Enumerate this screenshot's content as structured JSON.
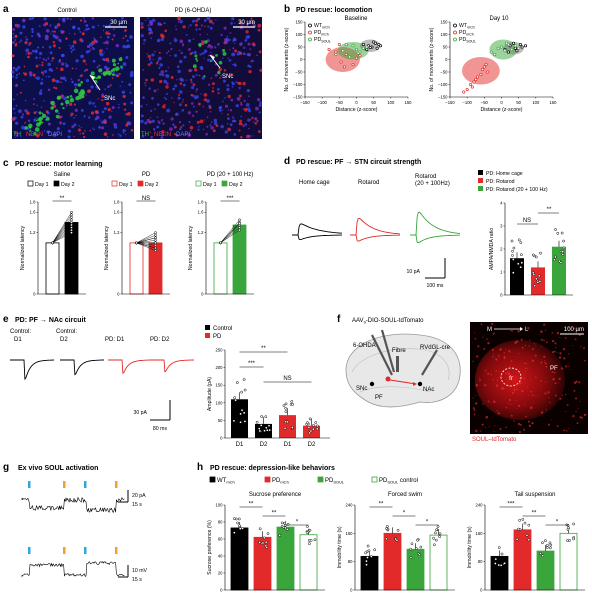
{
  "panel_letters": {
    "a": "a",
    "b": "b",
    "c": "c",
    "d": "d",
    "e": "e",
    "f": "f",
    "g": "g",
    "h": "h"
  },
  "panel_a": {
    "left_title": "Control",
    "right_title": "PD (6-OHDA)",
    "scale_left": "30 µm",
    "scale_right": "30 µm",
    "arrow_label_left": "SNc",
    "arrow_label_right": "SNc",
    "stain_th": "TH",
    "stain_neun": "NEUN",
    "stain_dapi": "DAPI",
    "colors": {
      "th": "#2ecc40",
      "neun": "#ff2d2d",
      "dapi": "#3a4bff"
    }
  },
  "panel_b": {
    "heading": "PD rescue: locomotion",
    "charts": [
      {
        "type": "scatter",
        "title": "Baseline",
        "xlabel": "Distance (z-score)",
        "ylabel": "No. of movements (z-score)",
        "xticks": [
          "−150",
          "−100",
          "−50",
          "0",
          "50",
          "100",
          "150"
        ],
        "yticks": [
          "−150",
          "−100",
          "−50",
          "0",
          "50",
          "100",
          "150"
        ],
        "xlim": [
          -150,
          150
        ],
        "ylim": [
          -150,
          150
        ],
        "legend": [
          "WT",
          "PD",
          "PD"
        ],
        "legend_sub": [
          "mCh",
          "mCh",
          "SOUL"
        ],
        "series": [
          {
            "color": "#000000",
            "x": [
              20,
              35,
              45,
              55,
              60,
              70,
              30,
              50,
              65,
              40
            ],
            "y": [
              60,
              55,
              50,
              65,
              45,
              55,
              40,
              70,
              60,
              48
            ]
          },
          {
            "color": "#e32a2a",
            "x": [
              -80,
              -60,
              -45,
              -30,
              -20,
              -10,
              0,
              10,
              -50,
              -35
            ],
            "y": [
              40,
              30,
              -10,
              20,
              10,
              -20,
              5,
              15,
              60,
              -30
            ]
          },
          {
            "color": "#3aa53a",
            "x": [
              -60,
              -40,
              -20,
              0,
              10,
              20,
              30,
              -30,
              5,
              -10
            ],
            "y": [
              20,
              35,
              10,
              40,
              30,
              45,
              50,
              60,
              25,
              55
            ]
          }
        ],
        "ellipses": [
          {
            "color": "#e32a2a",
            "cx": -40,
            "cy": 0,
            "rx": 50,
            "ry": 50
          },
          {
            "color": "#3aa53a",
            "cx": -10,
            "cy": 35,
            "rx": 45,
            "ry": 35
          },
          {
            "color": "#777777",
            "cx": 40,
            "cy": 55,
            "rx": 30,
            "ry": 25
          }
        ]
      },
      {
        "type": "scatter",
        "title": "Day 10",
        "xlabel": "Distance (z-score)",
        "ylabel": "No. of movements (z-score)",
        "xticks": [
          "−150",
          "−100",
          "−50",
          "0",
          "50",
          "100",
          "150"
        ],
        "yticks": [
          "−150",
          "−100",
          "−50",
          "0",
          "50",
          "100",
          "150"
        ],
        "xlim": [
          -150,
          150
        ],
        "ylim": [
          -150,
          150
        ],
        "legend": [
          "WT",
          "PD",
          "PD"
        ],
        "legend_sub": [
          "mCh",
          "mCh",
          "SOUL"
        ],
        "series": [
          {
            "color": "#000000",
            "x": [
              10,
              25,
              40,
              55,
              35,
              60,
              20,
              45,
              70
            ],
            "y": [
              40,
              55,
              45,
              60,
              65,
              50,
              30,
              35,
              55
            ]
          },
          {
            "color": "#e32a2a",
            "x": [
              -110,
              -100,
              -90,
              -80,
              -70,
              -60,
              -55,
              -50,
              -45,
              -40,
              -75,
              -85
            ],
            "y": [
              -130,
              -120,
              -100,
              -90,
              -70,
              -60,
              -40,
              -30,
              -20,
              -50,
              -80,
              -110
            ]
          },
          {
            "color": "#3aa53a",
            "x": [
              -30,
              -10,
              0,
              10,
              20,
              30,
              40,
              -20,
              15,
              50
            ],
            "y": [
              30,
              45,
              50,
              35,
              60,
              40,
              55,
              20,
              65,
              45
            ]
          }
        ],
        "ellipses": [
          {
            "color": "#e32a2a",
            "cx": -60,
            "cy": -45,
            "rx": 55,
            "ry": 55
          },
          {
            "color": "#3aa53a",
            "cx": 5,
            "cy": 40,
            "rx": 40,
            "ry": 40
          },
          {
            "color": "#777777",
            "cx": 35,
            "cy": 45,
            "rx": 30,
            "ry": 25
          }
        ]
      }
    ]
  },
  "panel_c": {
    "heading": "PD rescue: motor learning",
    "ylabel": "Normalized latency",
    "charts": [
      {
        "type": "bar",
        "title": "Saline",
        "legend": [
          "Day 1",
          "Day 2"
        ],
        "fill_color": "#000000",
        "categories": [
          "Day 1",
          "Day 2"
        ],
        "values": [
          1.0,
          1.4
        ],
        "sig": "**",
        "ylim": [
          0.0,
          1.8
        ],
        "yticks": [
          "0",
          "1.2",
          "1.6",
          "1.8"
        ],
        "pairs": [
          [
            1,
            1.3
          ],
          [
            1,
            1.5
          ],
          [
            1,
            1.6
          ],
          [
            1,
            1.4
          ],
          [
            1,
            1.2
          ],
          [
            1,
            1.35
          ],
          [
            1,
            1.45
          ],
          [
            1,
            1.55
          ],
          [
            1,
            1.25
          ]
        ]
      },
      {
        "type": "bar",
        "title": "PD",
        "legend": [
          "Day 1",
          "Day 2"
        ],
        "fill_color": "#e32a2a",
        "categories": [
          "Day 1",
          "Day 2"
        ],
        "values": [
          1.0,
          1.0
        ],
        "sig": "NS",
        "ylim": [
          0.0,
          1.8
        ],
        "yticks": [
          "0",
          "1.2",
          "1.6",
          "1.8"
        ],
        "pairs": [
          [
            1,
            1.1
          ],
          [
            1,
            0.9
          ],
          [
            1,
            1.0
          ],
          [
            1,
            1.2
          ],
          [
            1,
            0.95
          ],
          [
            1,
            1.05
          ],
          [
            1,
            0.85
          ],
          [
            1,
            1.15
          ],
          [
            1,
            1.0
          ],
          [
            1,
            0.9
          ],
          [
            1,
            1.1
          ]
        ]
      },
      {
        "type": "bar",
        "title": "PD (20 + 100 Hz)",
        "legend": [
          "Day 1",
          "Day 2"
        ],
        "fill_color": "#3aa53a",
        "categories": [
          "Day 1",
          "Day 2"
        ],
        "values": [
          1.0,
          1.35
        ],
        "sig": "***",
        "ylim": [
          0.0,
          1.8
        ],
        "yticks": [
          "0",
          "1.2",
          "1.6",
          "1.8"
        ],
        "pairs": [
          [
            1,
            1.3
          ],
          [
            1,
            1.4
          ],
          [
            1,
            1.35
          ],
          [
            1,
            1.45
          ],
          [
            1,
            1.25
          ],
          [
            1,
            1.38
          ]
        ]
      }
    ]
  },
  "panel_d": {
    "heading": "PD rescue: PF → STN circuit strength",
    "trace_labels": [
      "Home cage",
      "Rotarod",
      "Rotarod (20 + 100Hz)"
    ],
    "trace_colors": [
      "#000000",
      "#e32a2a",
      "#3aa53a"
    ],
    "scale_y": "10 pA",
    "scale_x": "100 ms",
    "legend": [
      "PD: Home cage",
      "PD: Rotarod",
      "PD: Rotarod (20 + 100 Hz)"
    ],
    "legend_colors": [
      "#000000",
      "#e32a2a",
      "#3aa53a"
    ],
    "chart": {
      "type": "bar",
      "ylabel": "AMPA/NMDA ratio",
      "categories": [
        "PD: Home cage",
        "PD: Rotarod",
        "PD: Rotarod (20 + 100 Hz)"
      ],
      "values": [
        1.6,
        1.2,
        2.1
      ],
      "ylim": [
        0,
        4
      ],
      "yticks": [
        "0",
        "1",
        "2",
        "3",
        "4"
      ],
      "sig": [
        "NS",
        "**"
      ]
    }
  },
  "panel_e": {
    "heading": "PD: PF → NAc circuit",
    "trace_labels": [
      "Control: D1",
      "Control: D2",
      "PD: D1",
      "PD: D2"
    ],
    "trace_colors": [
      "#000000",
      "#000000",
      "#e32a2a",
      "#e32a2a"
    ],
    "scale_y": "30 pA",
    "scale_x": "80 ms",
    "legend": [
      "Control",
      "PD"
    ],
    "chart": {
      "type": "bar",
      "ylabel": "Amplitude (pA)",
      "categories": [
        "D1",
        "D2",
        "D1",
        "D2"
      ],
      "values": [
        110,
        40,
        65,
        35
      ],
      "colors": [
        "#000000",
        "#000000",
        "#e32a2a",
        "#e32a2a"
      ],
      "ylim": [
        0,
        250
      ],
      "yticks": [
        "0",
        "50",
        "100",
        "150",
        "200",
        "250"
      ],
      "sig": [
        "**",
        "***",
        "NS"
      ]
    }
  },
  "panel_f": {
    "virus": "AAV",
    "virus_sub": "9",
    "virus_rest": "-DIO-SOUL-tdTomato",
    "lesion": "6-OHDA",
    "fibre": "Fibre",
    "retro": "RVdGL-cre",
    "snc": "SNc",
    "pf": "PF",
    "nac": "NAc",
    "orient_m": "M",
    "orient_l": "L",
    "scale": "100 µm",
    "fr": "fr",
    "pf_img": "PF",
    "caption": "SOUL–tdTomato"
  },
  "panel_g": {
    "heading": "Ex vivo SOUL activation",
    "scale1_y": "20 pA",
    "scale1_x": "15 s",
    "scale2_y": "10 mV",
    "scale2_x": "15 s",
    "stim_colors": [
      "#2aa7e6",
      "#f0a030"
    ]
  },
  "panel_h": {
    "heading": "PD rescue: depression-like behaviors",
    "legend": [
      "WT",
      "PD",
      "PD",
      "PD"
    ],
    "legend_sub": [
      "mCh",
      "mCh",
      "SOUL",
      "SOUL"
    ],
    "legend_tail": [
      "",
      "",
      "",
      " control"
    ],
    "legend_colors": [
      "#000000",
      "#e32a2a",
      "#3aa53a",
      "#3aa53a"
    ],
    "charts": [
      {
        "type": "bar",
        "title": "Sucrose preference",
        "ylabel": "Sucrose preference (%)",
        "values": [
          73,
          62,
          74,
          65
        ],
        "ylim": [
          0,
          100
        ],
        "yticks": [
          "0",
          "20",
          "40",
          "60",
          "80",
          "100"
        ],
        "sig": [
          "**",
          "**",
          "*"
        ]
      },
      {
        "type": "bar",
        "title": "Forced swim",
        "ylabel": "Immobility time (s)",
        "values": [
          95,
          160,
          115,
          155
        ],
        "ylim": [
          0,
          240
        ],
        "yticks": [
          "0",
          "80",
          "160",
          "240"
        ],
        "sig": [
          "**",
          "*",
          "*"
        ]
      },
      {
        "type": "bar",
        "title": "Tail suspension",
        "ylabel": "Immobility time (s)",
        "values": [
          95,
          170,
          110,
          160
        ],
        "ylim": [
          0,
          240
        ],
        "yticks": [
          "0",
          "80",
          "160",
          "240"
        ],
        "sig": [
          "***",
          "**",
          "*"
        ]
      }
    ]
  }
}
